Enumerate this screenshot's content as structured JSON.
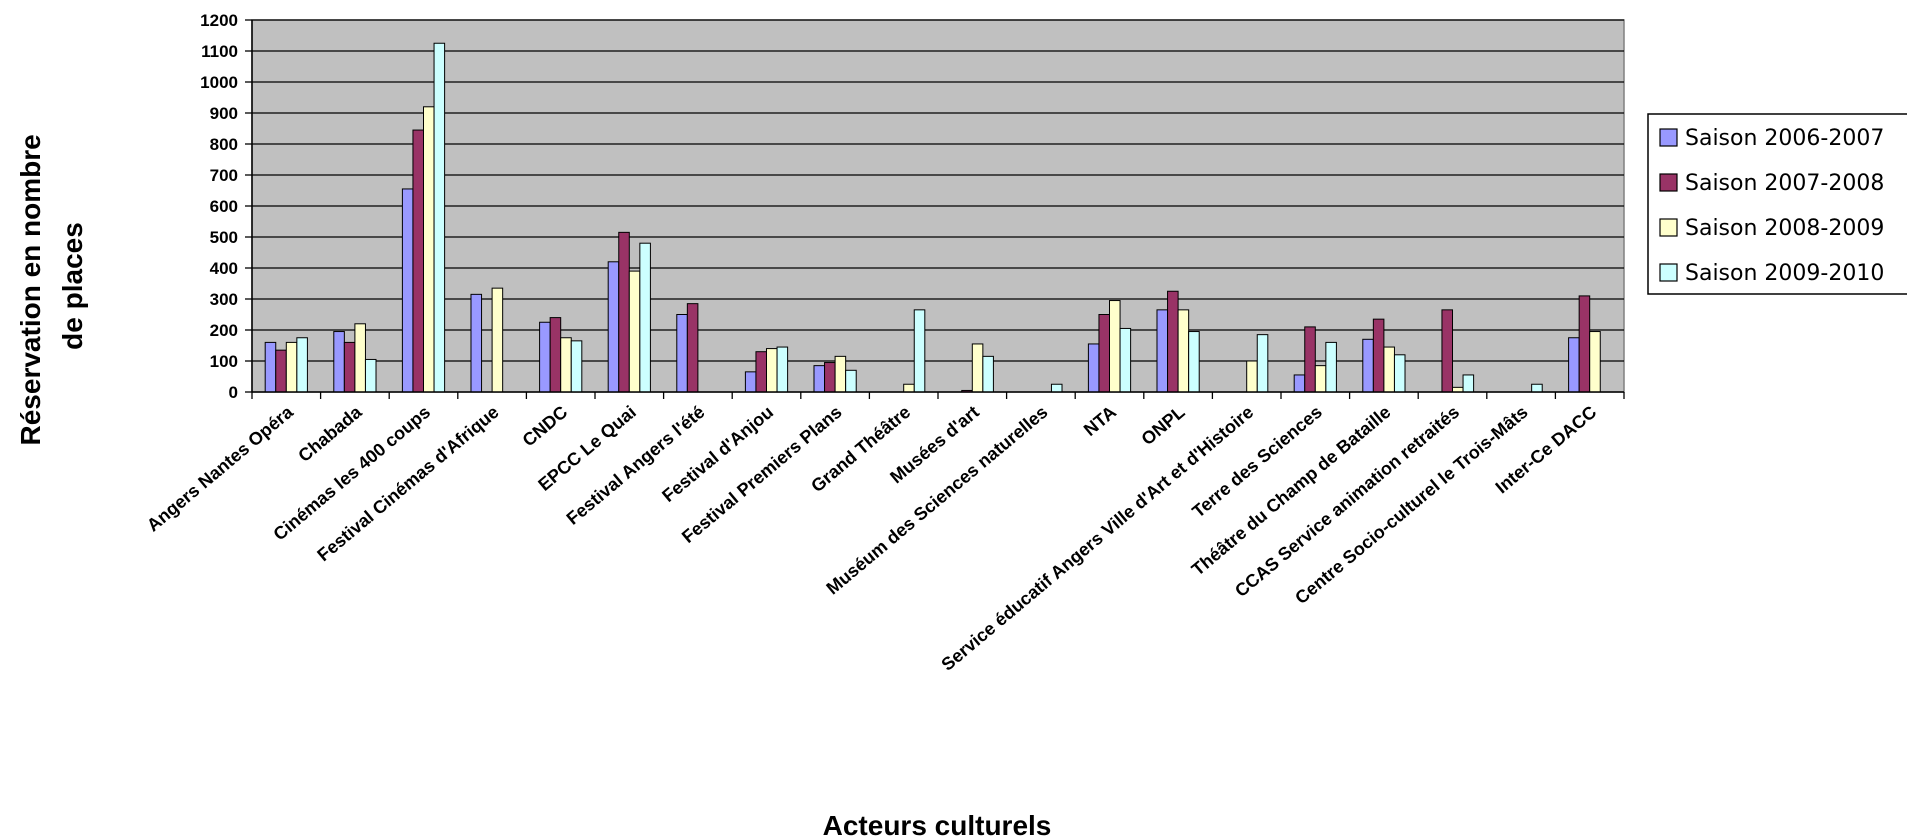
{
  "chart_data": {
    "type": "bar",
    "title": "",
    "xlabel": "Acteurs culturels",
    "ylabel": [
      "Réservation en nombre",
      "de places"
    ],
    "ylim": [
      0,
      1200
    ],
    "yticks": [
      0,
      100,
      200,
      300,
      400,
      500,
      600,
      700,
      800,
      900,
      1000,
      1100,
      1200
    ],
    "grid": true,
    "legend_position": "right",
    "plot_background": "#c0c0c0",
    "categories": [
      "Angers Nantes Opéra",
      "Chabada",
      "Cinémas les 400 coups",
      "Festival Cinémas d'Afrique",
      "CNDC",
      "EPCC Le Quai",
      "Festival Angers l'été",
      "Festival d'Anjou",
      "Festival Premiers Plans",
      "Grand Théâtre",
      "Musées d'art",
      "Muséum des Sciences naturelles",
      "NTA",
      "ONPL",
      "Service éducatif Angers Ville d'Art et d'Histoire",
      "Terre des Sciences",
      "Théâtre du Champ de Bataille",
      "CCAS Service animation retraités",
      "Centre Socio-culturel le Trois-Mâts",
      "Inter-Ce DACC"
    ],
    "series": [
      {
        "name": "Saison 2006-2007",
        "color": "#9999ff",
        "values": [
          160,
          195,
          655,
          315,
          225,
          420,
          250,
          65,
          85,
          0,
          0,
          0,
          155,
          265,
          0,
          55,
          170,
          0,
          0,
          175
        ]
      },
      {
        "name": "Saison 2007-2008",
        "color": "#993366",
        "values": [
          135,
          160,
          845,
          0,
          240,
          515,
          285,
          130,
          95,
          0,
          5,
          0,
          250,
          325,
          0,
          210,
          235,
          265,
          0,
          310
        ]
      },
      {
        "name": "Saison 2008-2009",
        "color": "#ffffcc",
        "values": [
          160,
          220,
          920,
          335,
          175,
          390,
          0,
          140,
          115,
          25,
          155,
          0,
          295,
          265,
          100,
          85,
          145,
          15,
          0,
          195
        ]
      },
      {
        "name": "Saison 2009-2010",
        "color": "#ccffff",
        "values": [
          175,
          105,
          1125,
          0,
          165,
          480,
          0,
          145,
          70,
          265,
          115,
          25,
          205,
          195,
          185,
          160,
          120,
          55,
          25,
          0
        ]
      }
    ]
  }
}
